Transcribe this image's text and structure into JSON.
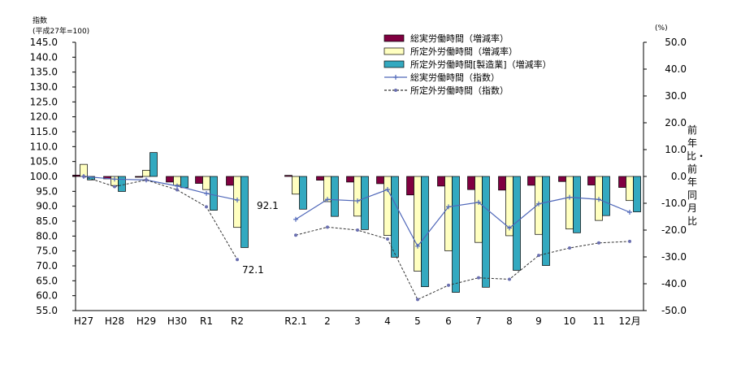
{
  "chart_data": {
    "type": "bar",
    "title": "",
    "left_axis": {
      "label": "指数",
      "sublabel": "(平成27年=100)",
      "ylim": [
        55,
        145
      ],
      "ticks": [
        "145.0",
        "140.0",
        "135.0",
        "130.0",
        "125.0",
        "120.0",
        "115.0",
        "110.0",
        "105.0",
        "100.0",
        "95.0",
        "90.0",
        "85.0",
        "80.0",
        "75.0",
        "70.0",
        "65.0",
        "60.0",
        "55.0"
      ]
    },
    "right_axis": {
      "label": "前年比・前年同月比",
      "unit": "(%)",
      "ylim": [
        -50,
        50
      ],
      "ticks": [
        "50.0",
        "40.0",
        "30.0",
        "20.0",
        "10.0",
        "0.0",
        "-10.0",
        "-20.0",
        "-30.0",
        "-40.0",
        "-50.0"
      ]
    },
    "categories": [
      "H27",
      "H28",
      "H29",
      "H30",
      "R1",
      "R2",
      "R2.1",
      "2",
      "3",
      "4",
      "5",
      "6",
      "7",
      "8",
      "9",
      "10",
      "11",
      "12月"
    ],
    "series": [
      {
        "name": "総実労働時間（増減率）",
        "type": "bar",
        "axis": "right",
        "color": "#800040",
        "values": [
          0.5,
          -0.9,
          -0.3,
          -2.1,
          -2.6,
          -3.3,
          0.4,
          -1.4,
          -2.1,
          -2.7,
          -6.9,
          -3.6,
          -4.9,
          -5.1,
          -3.3,
          -1.9,
          -3.2,
          -4.1
        ]
      },
      {
        "name": "所定外労働時間（増減率）",
        "type": "bar",
        "axis": "right",
        "color": "#ffffc0",
        "values": [
          4.5,
          -3.4,
          2.3,
          -3.3,
          -4.9,
          -19.0,
          -6.6,
          -9.4,
          -14.8,
          -22.0,
          -35.3,
          -27.7,
          -24.6,
          -22.1,
          -21.6,
          -19.6,
          -16.4,
          -9.0
        ]
      },
      {
        "name": "所定外労働時間[製造業]（増減率）",
        "type": "bar",
        "axis": "right",
        "color": "#33a9c0",
        "values": [
          -1.3,
          -5.6,
          8.9,
          -4.2,
          -12.6,
          -26.5,
          -12.2,
          -14.9,
          -19.8,
          -30.1,
          -41.1,
          -43.2,
          -41.3,
          -35.0,
          -33.2,
          -21.0,
          -14.6,
          -13.2
        ]
      },
      {
        "name": "総実労働時間（指数）",
        "type": "line",
        "axis": "left",
        "color": "#4f67b9",
        "values": [
          100.0,
          99.1,
          98.8,
          96.8,
          94.3,
          92.1,
          85.6,
          92.3,
          91.8,
          95.6,
          76.6,
          89.8,
          91.3,
          82.7,
          90.8,
          93.0,
          92.3,
          88.0
        ]
      },
      {
        "name": "所定外労働時間（指数）",
        "type": "line",
        "axis": "left",
        "color": "#4f67b9",
        "dashed": true,
        "values": [
          100.0,
          96.6,
          98.8,
          95.5,
          89.8,
          72.1,
          80.3,
          83.0,
          82.0,
          79.0,
          58.7,
          63.5,
          66.0,
          65.5,
          73.5,
          76.0,
          77.7,
          78.2
        ]
      }
    ],
    "annotations": [
      "92.1",
      "72.1"
    ],
    "legend_position": "top-right"
  }
}
